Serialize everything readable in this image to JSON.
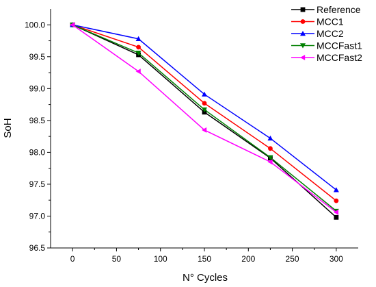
{
  "chart_data": {
    "type": "line",
    "title": "",
    "xlabel": "N° Cycles",
    "ylabel": "SoH",
    "xlim": [
      -25,
      325
    ],
    "ylim": [
      96.5,
      100.25
    ],
    "xticks": [
      0,
      50,
      100,
      150,
      200,
      250,
      300
    ],
    "yticks": [
      96.5,
      97.0,
      97.5,
      98.0,
      98.5,
      99.0,
      99.5,
      100.0
    ],
    "ytick_labels": [
      "96.5",
      "97.0",
      "97.5",
      "98.0",
      "98.5",
      "99.0",
      "99.5",
      "100.0"
    ],
    "x": [
      0,
      75,
      150,
      225,
      300
    ],
    "grid": false,
    "legend_position": "top-right",
    "series": [
      {
        "name": "Reference",
        "color": "#000000",
        "marker": "square",
        "values": [
          100.0,
          99.53,
          98.63,
          97.91,
          96.98
        ]
      },
      {
        "name": "MCC1",
        "color": "#ff0000",
        "marker": "circle",
        "values": [
          100.0,
          99.65,
          98.77,
          98.06,
          97.24
        ]
      },
      {
        "name": "MCC2",
        "color": "#0000ff",
        "marker": "triangle-up",
        "values": [
          100.0,
          99.78,
          98.91,
          98.22,
          97.41
        ]
      },
      {
        "name": "MCCFast1",
        "color": "#008000",
        "marker": "triangle-down",
        "values": [
          100.0,
          99.56,
          98.67,
          97.92,
          97.08
        ]
      },
      {
        "name": "MCCFast2",
        "color": "#ff00ff",
        "marker": "triangle-left",
        "values": [
          100.0,
          99.27,
          98.35,
          97.85,
          97.06
        ]
      }
    ]
  }
}
